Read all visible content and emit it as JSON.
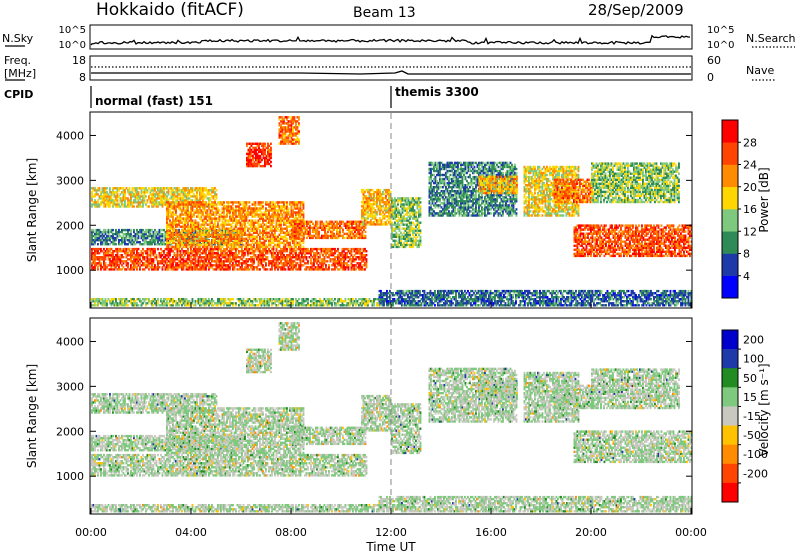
{
  "header": {
    "station": "Hokkaido (fitACF)",
    "beam": "Beam 13",
    "date": "28/Sep/2009"
  },
  "strip": {
    "nsky_label": "N.Sky",
    "nsearch_label": "N.Search",
    "nsky_ticks": [
      "10^5",
      "10^0"
    ],
    "nsearch_ticks": [
      "10^5",
      "10^0"
    ],
    "freq_label": "Freq.",
    "freq_unit": "[MHz]",
    "freq_ticks": [
      "18",
      "8"
    ],
    "nave_label": "Nave",
    "nave_ticks": [
      "60",
      "0"
    ],
    "cpid_label": "CPID",
    "cpid_modes": [
      {
        "label": "normal (fast) 151",
        "start_hour": 0
      },
      {
        "label": "themis 3300",
        "start_hour": 12
      }
    ]
  },
  "chart_data": [
    {
      "type": "heatmap",
      "name": "power",
      "ylabel": "Slant Range [km]",
      "ylim": [
        180,
        4500
      ],
      "yticks": [
        1000,
        2000,
        3000,
        4000
      ],
      "colorbar_label": "Power [dB]",
      "colorbar_ticks": [
        4,
        8,
        12,
        16,
        20,
        24,
        28
      ],
      "colorbar_range": [
        0,
        32
      ],
      "colors": [
        "#0000ff",
        "#1e3aa8",
        "#2e8b57",
        "#7fc97f",
        "#ffd700",
        "#ff8c00",
        "#ff4500",
        "#ff0000"
      ]
    },
    {
      "type": "heatmap",
      "name": "velocity",
      "ylabel": "Slant Range [km]",
      "xlabel": "Time UT",
      "ylim": [
        180,
        4500
      ],
      "yticks": [
        1000,
        2000,
        3000,
        4000
      ],
      "xlim": [
        0,
        24
      ],
      "xticks": [
        "00:00",
        "04:00",
        "08:00",
        "12:00",
        "16:00",
        "20:00",
        "00:00"
      ],
      "colorbar_label": "Velocity [m s⁻¹]",
      "colorbar_ticks": [
        "200",
        "100",
        "50",
        "15",
        "-15",
        "-50",
        "-100",
        "-200"
      ],
      "colors": [
        "#0000cd",
        "#1e3aa8",
        "#228b22",
        "#7fc97f",
        "#c8c8c0",
        "#ffc200",
        "#ff8c00",
        "#ff4500",
        "#ff0000"
      ]
    }
  ]
}
